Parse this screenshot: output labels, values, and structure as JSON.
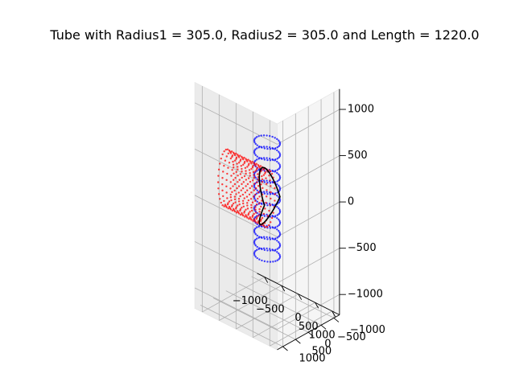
{
  "chart_data": {
    "type": "scatter3d",
    "title": "Tube with Radius1 = 305.0, Radius2 = 305.0 and Length = 1220.0",
    "xlabel": "",
    "ylabel": "",
    "zlabel": "",
    "x_ticks": [
      "−1000",
      "−500",
      "0",
      "500",
      "1000"
    ],
    "y_ticks": [
      "−1000",
      "−500",
      "0",
      "500",
      "1000"
    ],
    "z_ticks": [
      "−1000",
      "−500",
      "0",
      "500",
      "1000"
    ],
    "xlim": [
      -1220,
      1220
    ],
    "ylim": [
      -1220,
      1220
    ],
    "zlim": [
      -1220,
      1220
    ],
    "grid": true,
    "series": [
      {
        "color": "#0000ff",
        "marker": "dot",
        "axis": "z",
        "radius": 305,
        "length": 1220,
        "center": [
          0,
          0,
          0
        ]
      },
      {
        "color": "#ff0000",
        "marker": "dot",
        "axis": "x",
        "radius": 305,
        "length": 1220,
        "center": [
          -610,
          0,
          0
        ]
      },
      {
        "color": "#000000",
        "marker": "line",
        "curve": "intersection",
        "radius": 305
      }
    ]
  }
}
